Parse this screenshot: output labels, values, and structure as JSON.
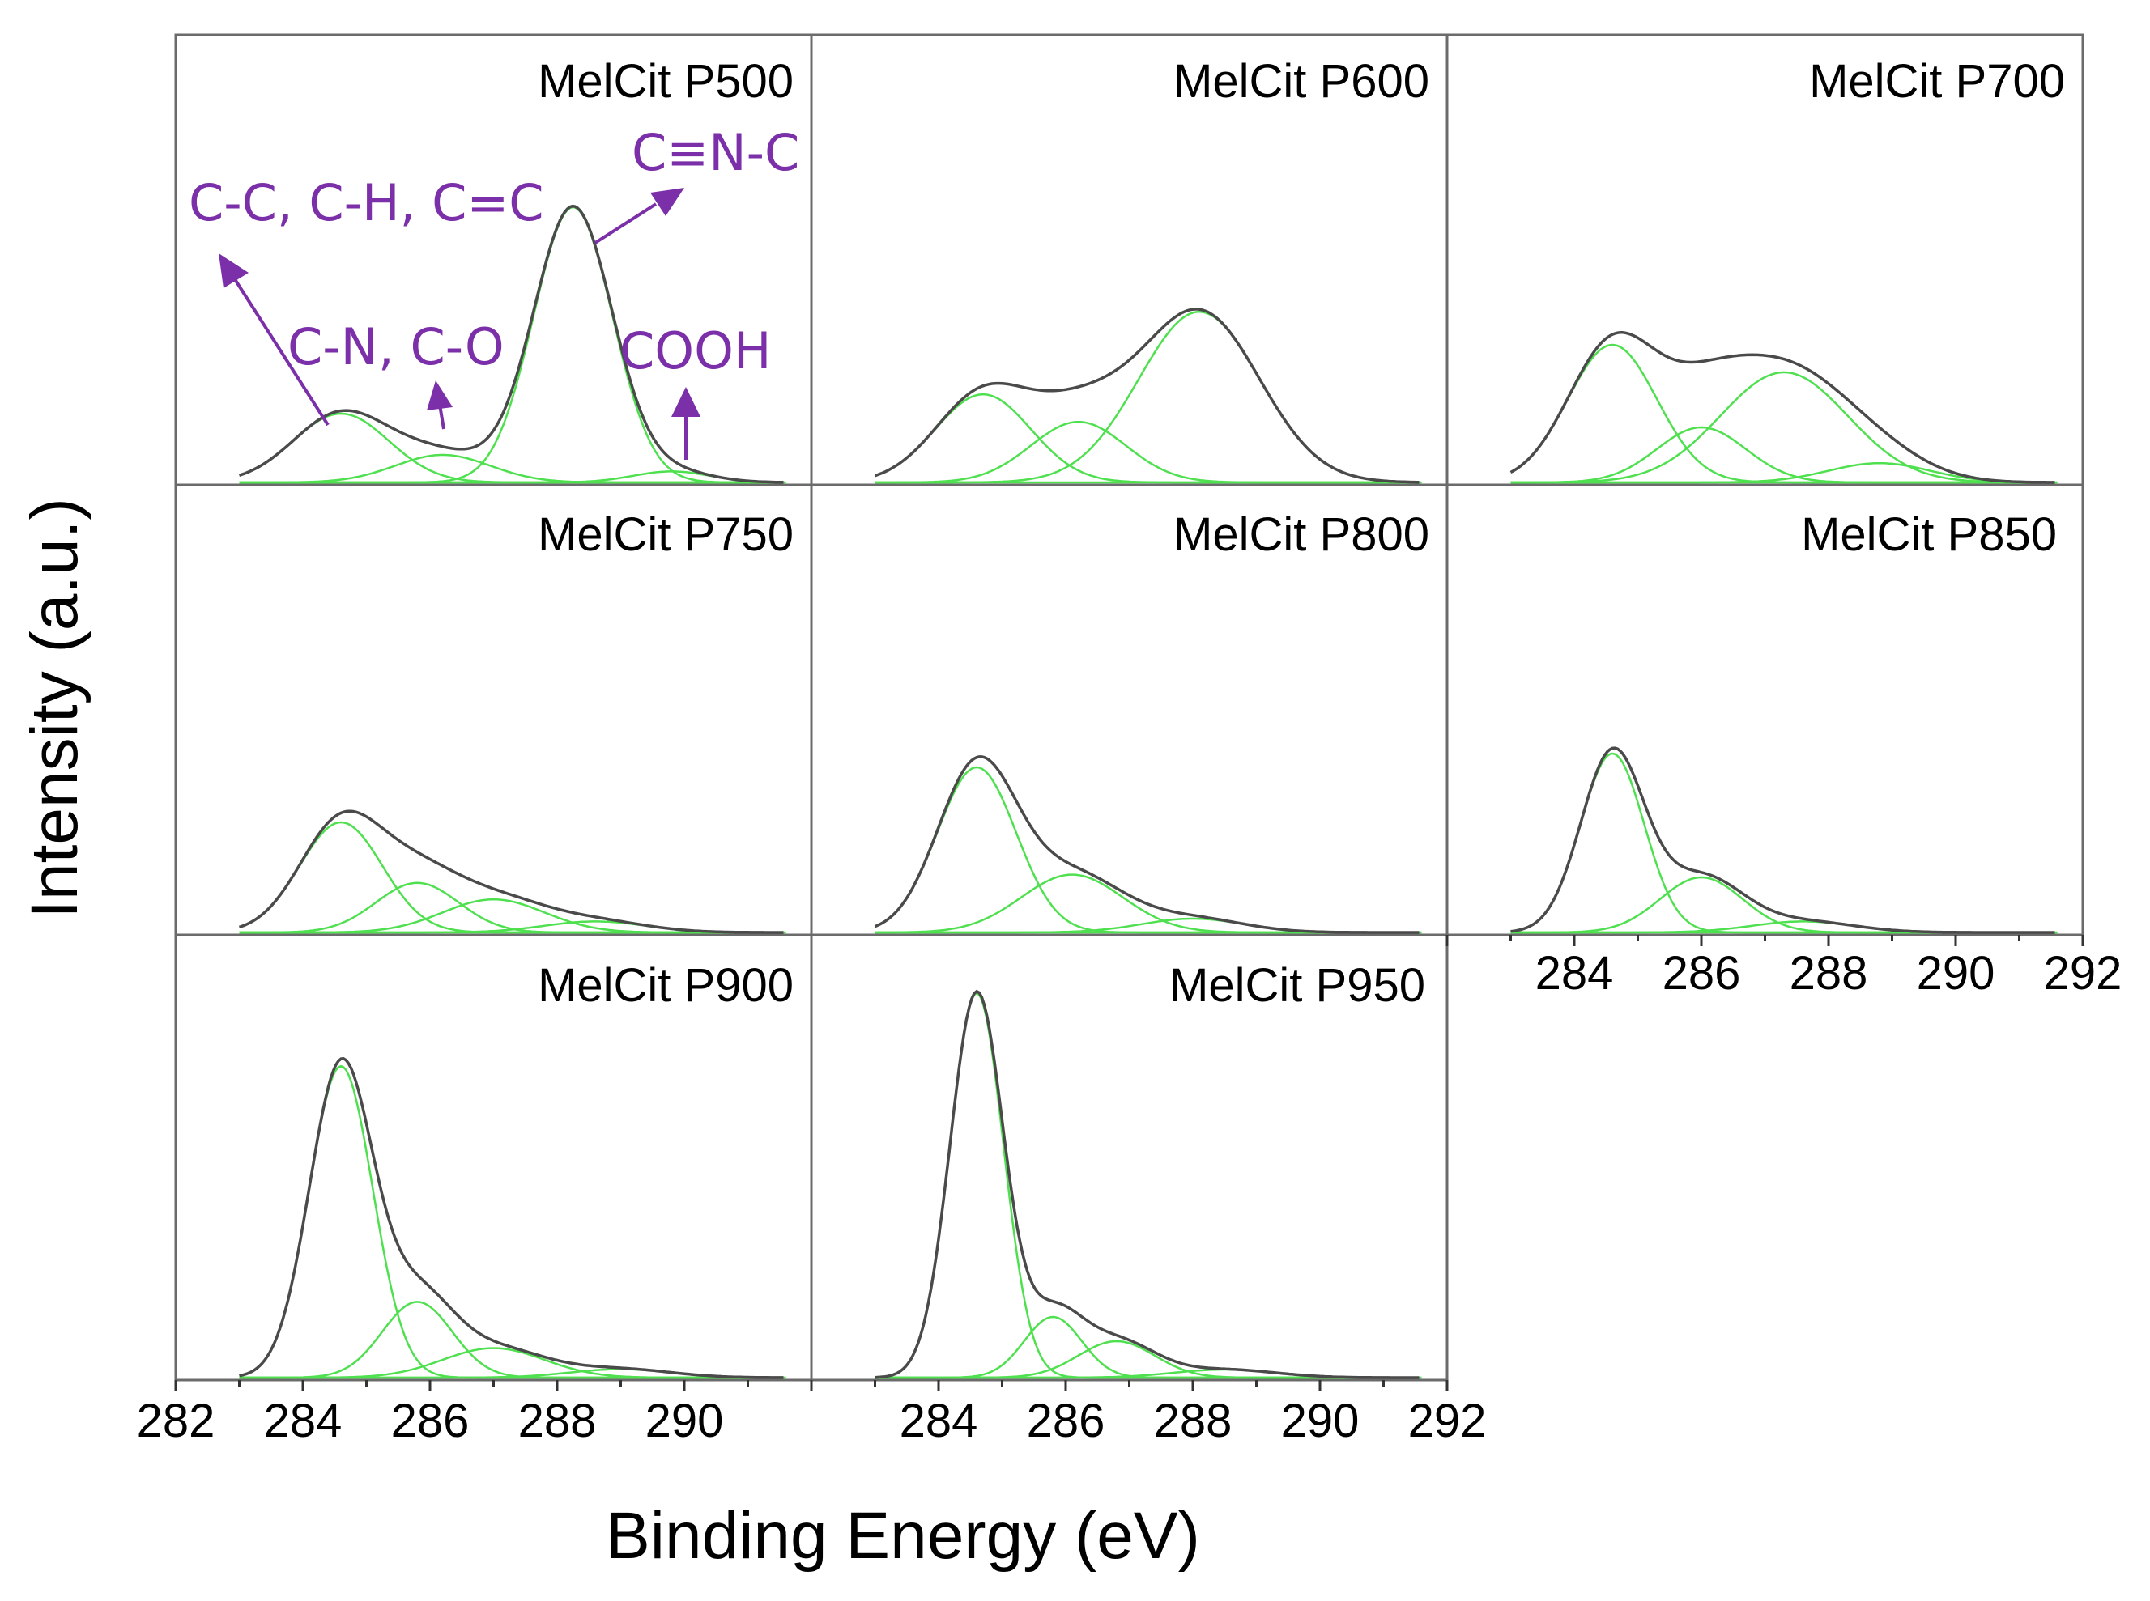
{
  "chart_data": {
    "type": "line",
    "xlabel": "Binding Energy (eV)",
    "ylabel": "Intensity (a.u.)",
    "xlim": [
      282,
      292
    ],
    "xticks_bottom_left": [
      "282",
      "284",
      "286",
      "288",
      "290"
    ],
    "xticks_bottom_mid": [
      "284",
      "286",
      "288",
      "290",
      "292"
    ],
    "xticks_right": [
      "284",
      "286",
      "288",
      "290",
      "292"
    ],
    "annotations": [
      "C-C, C-H, C=C",
      "C-N, C-O",
      "C≡N-C",
      "COOH"
    ],
    "panels": [
      {
        "title": "MelCit P500",
        "peaks": [
          {
            "center": 284.6,
            "height": 0.25,
            "width": 0.75
          },
          {
            "center": 286.2,
            "height": 0.1,
            "width": 0.75
          },
          {
            "center": 288.25,
            "height": 1.0,
            "width": 0.62
          },
          {
            "center": 289.8,
            "height": 0.04,
            "width": 0.6
          }
        ]
      },
      {
        "title": "MelCit P600",
        "peaks": [
          {
            "center": 284.7,
            "height": 0.32,
            "width": 0.75
          },
          {
            "center": 286.2,
            "height": 0.22,
            "width": 0.75
          },
          {
            "center": 288.1,
            "height": 0.62,
            "width": 0.95
          }
        ]
      },
      {
        "title": "MelCit P700",
        "peaks": [
          {
            "center": 284.6,
            "height": 0.5,
            "width": 0.7
          },
          {
            "center": 286.0,
            "height": 0.2,
            "width": 0.7
          },
          {
            "center": 287.3,
            "height": 0.4,
            "width": 1.0
          },
          {
            "center": 288.8,
            "height": 0.07,
            "width": 0.8
          }
        ]
      },
      {
        "title": "MelCit P750",
        "peaks": [
          {
            "center": 284.6,
            "height": 0.4,
            "width": 0.65
          },
          {
            "center": 285.8,
            "height": 0.18,
            "width": 0.65
          },
          {
            "center": 287.0,
            "height": 0.12,
            "width": 0.8
          },
          {
            "center": 288.6,
            "height": 0.04,
            "width": 0.8
          }
        ]
      },
      {
        "title": "MelCit P800",
        "peaks": [
          {
            "center": 284.6,
            "height": 0.6,
            "width": 0.62
          },
          {
            "center": 286.1,
            "height": 0.21,
            "width": 0.8
          },
          {
            "center": 288.0,
            "height": 0.05,
            "width": 0.8
          }
        ]
      },
      {
        "title": "MelCit P850",
        "peaks": [
          {
            "center": 284.6,
            "height": 0.65,
            "width": 0.5
          },
          {
            "center": 286.0,
            "height": 0.2,
            "width": 0.65
          },
          {
            "center": 287.6,
            "height": 0.04,
            "width": 0.8
          }
        ]
      },
      {
        "title": "MelCit P900",
        "peaks": [
          {
            "center": 284.6,
            "height": 0.74,
            "width": 0.5
          },
          {
            "center": 285.8,
            "height": 0.18,
            "width": 0.55
          },
          {
            "center": 287.0,
            "height": 0.07,
            "width": 0.8
          },
          {
            "center": 289.0,
            "height": 0.02,
            "width": 0.8
          }
        ]
      },
      {
        "title": "MelCit P950",
        "peaks": [
          {
            "center": 284.6,
            "height": 0.95,
            "width": 0.42
          },
          {
            "center": 285.8,
            "height": 0.15,
            "width": 0.45
          },
          {
            "center": 286.8,
            "height": 0.09,
            "width": 0.6
          },
          {
            "center": 288.5,
            "height": 0.02,
            "width": 0.8
          }
        ]
      }
    ]
  }
}
